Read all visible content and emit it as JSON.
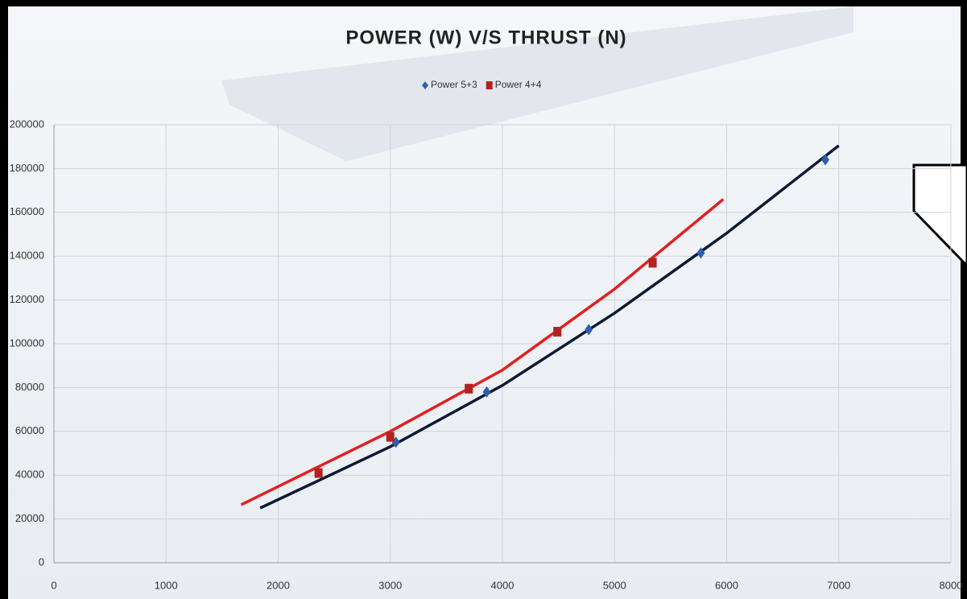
{
  "chart_data": {
    "type": "scatter",
    "title": "POWER (W) V/S THRUST (N)",
    "series": [
      {
        "name": "Power 5+3",
        "color": "#2e5fae",
        "marker": "diamond",
        "x": [
          3050,
          3860,
          4770,
          5770,
          6880
        ],
        "values": [
          55000,
          78000,
          106500,
          141500,
          184000
        ]
      },
      {
        "name": "Power 4+4",
        "color": "#b22222",
        "marker": "square",
        "x": [
          2360,
          3000,
          3700,
          4490,
          5340
        ],
        "values": [
          41000,
          57500,
          79500,
          105500,
          137000
        ]
      }
    ],
    "trendlines": [
      {
        "color": "#0d1a33",
        "x": [
          1840,
          3000,
          4000,
          5000,
          6000,
          7000
        ],
        "values": [
          25000,
          53000,
          81000,
          114000,
          150500,
          190500
        ]
      },
      {
        "color": "#e02020",
        "x": [
          1670,
          3000,
          4000,
          5000,
          5970
        ],
        "values": [
          26500,
          60000,
          88000,
          125000,
          166000
        ]
      }
    ],
    "xlim": [
      0,
      8000
    ],
    "xticks": [
      0,
      1000,
      2000,
      3000,
      4000,
      5000,
      6000,
      7000,
      8000
    ],
    "ylim": [
      0,
      200000
    ],
    "yticks": [
      0,
      20000,
      40000,
      60000,
      80000,
      100000,
      120000,
      140000,
      160000,
      180000,
      200000
    ],
    "grid": true,
    "legend": "top"
  }
}
